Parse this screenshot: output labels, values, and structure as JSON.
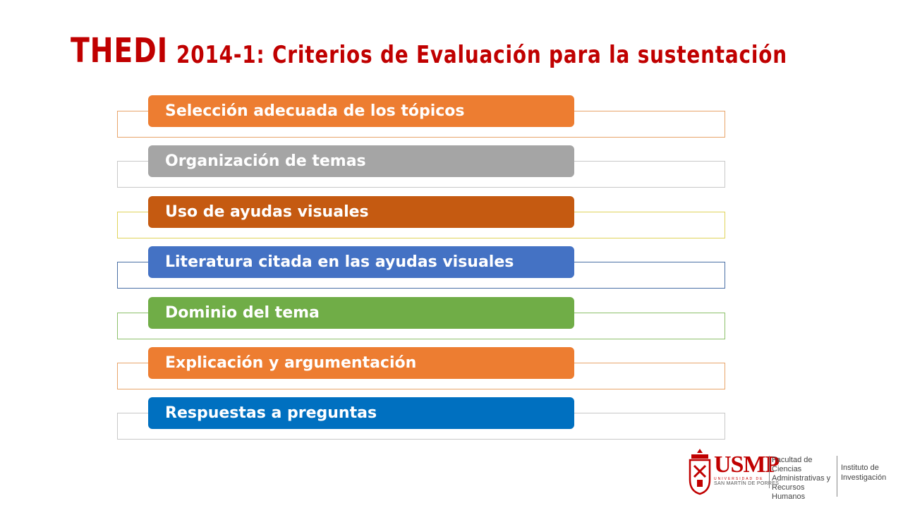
{
  "title": {
    "prefix": "THEDI",
    "rest": "2014-1: Criterios de Evaluación para la sustentación"
  },
  "items": [
    {
      "label": "Selección adecuada de los tópicos",
      "color": "#ed7d31",
      "frame": "#e8a46a"
    },
    {
      "label": "Organización de temas",
      "color": "#a5a5a5",
      "frame": "#c8c8c8"
    },
    {
      "label": "Uso de ayudas visuales",
      "color": "#c55a11",
      "frame": "#e0d35a"
    },
    {
      "label": "Literatura citada en las ayudas visuales",
      "color": "#4472c4",
      "frame": "#4a6fa5"
    },
    {
      "label": "Dominio del tema",
      "color": "#70ad47",
      "frame": "#8cc06a"
    },
    {
      "label": "Explicación y  argumentación",
      "color": "#ed7d31",
      "frame": "#e8a46a"
    },
    {
      "label": "Respuestas a preguntas",
      "color": "#0070c0",
      "frame": "#c8c8c8"
    }
  ],
  "logo": {
    "name": "USMP",
    "university": "SAN MARTÍN DE PORRES",
    "university_top": "UNIVERSIDAD DE",
    "faculty": "Facultad de Ciencias Administrativas y Recursos Humanos",
    "institute": "Instituto de Investigación"
  }
}
